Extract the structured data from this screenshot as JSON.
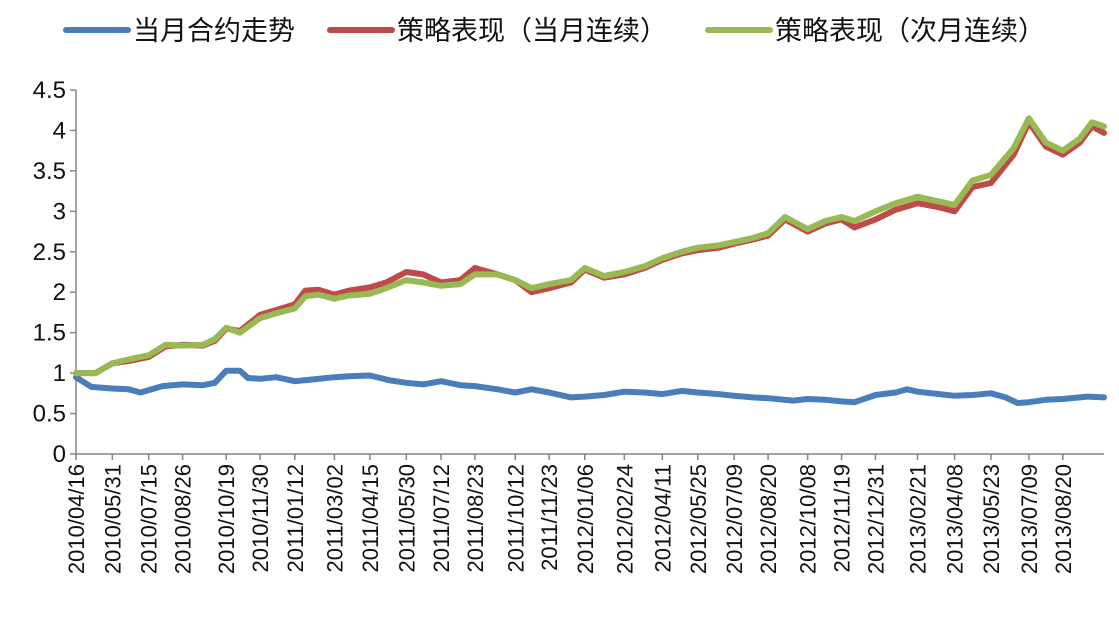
{
  "chart_data": {
    "type": "line",
    "legend_position": "top",
    "grid": false,
    "ylim": [
      0,
      4.5
    ],
    "y_ticks": [
      "0",
      "0.5",
      "1",
      "1.5",
      "2",
      "2.5",
      "3",
      "3.5",
      "4",
      "4.5"
    ],
    "x_ticks": [
      "2010/04/16",
      "2010/05/31",
      "2010/07/15",
      "2010/08/26",
      "2010/10/19",
      "2010/11/30",
      "2011/01/12",
      "2011/03/02",
      "2011/04/15",
      "2011/05/30",
      "2011/07/12",
      "2011/08/23",
      "2011/10/12",
      "2011/11/23",
      "2012/01/06",
      "2012/02/24",
      "2012/04/11",
      "2012/05/25",
      "2012/07/09",
      "2012/08/20",
      "2012/10/08",
      "2012/11/19",
      "2012/12/31",
      "2013/02/21",
      "2013/04/08",
      "2013/05/23",
      "2013/07/09",
      "2013/08/20"
    ],
    "x_range": [
      "2010/04/16",
      "2013/10/10"
    ],
    "series": [
      {
        "name": "当月合约走势",
        "color": "#4a7ebb",
        "points": [
          [
            "2010/04/16",
            0.95
          ],
          [
            "2010/05/05",
            0.83
          ],
          [
            "2010/05/31",
            0.81
          ],
          [
            "2010/06/20",
            0.8
          ],
          [
            "2010/07/05",
            0.76
          ],
          [
            "2010/07/15",
            0.79
          ],
          [
            "2010/08/01",
            0.84
          ],
          [
            "2010/08/26",
            0.86
          ],
          [
            "2010/09/20",
            0.85
          ],
          [
            "2010/10/05",
            0.88
          ],
          [
            "2010/10/19",
            1.03
          ],
          [
            "2010/11/05",
            1.03
          ],
          [
            "2010/11/15",
            0.94
          ],
          [
            "2010/11/30",
            0.93
          ],
          [
            "2010/12/20",
            0.95
          ],
          [
            "2011/01/12",
            0.9
          ],
          [
            "2011/02/01",
            0.92
          ],
          [
            "2011/03/02",
            0.95
          ],
          [
            "2011/03/20",
            0.96
          ],
          [
            "2011/04/15",
            0.97
          ],
          [
            "2011/05/10",
            0.91
          ],
          [
            "2011/05/30",
            0.88
          ],
          [
            "2011/06/20",
            0.86
          ],
          [
            "2011/07/12",
            0.9
          ],
          [
            "2011/08/05",
            0.85
          ],
          [
            "2011/08/23",
            0.84
          ],
          [
            "2011/09/20",
            0.8
          ],
          [
            "2011/10/12",
            0.76
          ],
          [
            "2011/11/01",
            0.8
          ],
          [
            "2011/11/23",
            0.76
          ],
          [
            "2011/12/20",
            0.7
          ],
          [
            "2012/01/06",
            0.71
          ],
          [
            "2012/01/30",
            0.73
          ],
          [
            "2012/02/24",
            0.77
          ],
          [
            "2012/03/20",
            0.76
          ],
          [
            "2012/04/11",
            0.74
          ],
          [
            "2012/05/05",
            0.78
          ],
          [
            "2012/05/25",
            0.76
          ],
          [
            "2012/06/20",
            0.74
          ],
          [
            "2012/07/09",
            0.72
          ],
          [
            "2012/08/01",
            0.7
          ],
          [
            "2012/08/20",
            0.69
          ],
          [
            "2012/09/20",
            0.66
          ],
          [
            "2012/10/08",
            0.68
          ],
          [
            "2012/10/30",
            0.67
          ],
          [
            "2012/11/19",
            0.65
          ],
          [
            "2012/12/05",
            0.64
          ],
          [
            "2012/12/31",
            0.73
          ],
          [
            "2013/01/25",
            0.76
          ],
          [
            "2013/02/08",
            0.8
          ],
          [
            "2013/02/21",
            0.77
          ],
          [
            "2013/03/20",
            0.74
          ],
          [
            "2013/04/08",
            0.72
          ],
          [
            "2013/04/30",
            0.73
          ],
          [
            "2013/05/23",
            0.75
          ],
          [
            "2013/06/10",
            0.7
          ],
          [
            "2013/06/25",
            0.63
          ],
          [
            "2013/07/09",
            0.64
          ],
          [
            "2013/07/30",
            0.67
          ],
          [
            "2013/08/20",
            0.68
          ],
          [
            "2013/09/20",
            0.71
          ],
          [
            "2013/10/10",
            0.7
          ]
        ]
      },
      {
        "name": "策略表现（当月连续）",
        "color": "#be4b48",
        "points": [
          [
            "2010/04/16",
            1.0
          ],
          [
            "2010/05/10",
            1.0
          ],
          [
            "2010/05/31",
            1.12
          ],
          [
            "2010/06/20",
            1.15
          ],
          [
            "2010/07/15",
            1.2
          ],
          [
            "2010/08/05",
            1.33
          ],
          [
            "2010/08/26",
            1.35
          ],
          [
            "2010/09/20",
            1.34
          ],
          [
            "2010/10/05",
            1.4
          ],
          [
            "2010/10/19",
            1.55
          ],
          [
            "2010/11/05",
            1.52
          ],
          [
            "2010/11/30",
            1.72
          ],
          [
            "2010/12/20",
            1.78
          ],
          [
            "2011/01/12",
            1.85
          ],
          [
            "2011/01/25",
            2.02
          ],
          [
            "2011/02/10",
            2.03
          ],
          [
            "2011/03/02",
            1.97
          ],
          [
            "2011/03/20",
            2.02
          ],
          [
            "2011/04/15",
            2.06
          ],
          [
            "2011/05/05",
            2.12
          ],
          [
            "2011/05/30",
            2.25
          ],
          [
            "2011/06/20",
            2.22
          ],
          [
            "2011/07/12",
            2.12
          ],
          [
            "2011/08/05",
            2.15
          ],
          [
            "2011/08/23",
            2.3
          ],
          [
            "2011/09/20",
            2.22
          ],
          [
            "2011/10/12",
            2.15
          ],
          [
            "2011/11/01",
            2.0
          ],
          [
            "2011/11/23",
            2.05
          ],
          [
            "2011/12/20",
            2.12
          ],
          [
            "2012/01/06",
            2.28
          ],
          [
            "2012/01/30",
            2.18
          ],
          [
            "2012/02/24",
            2.22
          ],
          [
            "2012/03/20",
            2.3
          ],
          [
            "2012/04/11",
            2.4
          ],
          [
            "2012/05/05",
            2.48
          ],
          [
            "2012/05/25",
            2.52
          ],
          [
            "2012/06/20",
            2.55
          ],
          [
            "2012/07/09",
            2.6
          ],
          [
            "2012/08/01",
            2.65
          ],
          [
            "2012/08/20",
            2.7
          ],
          [
            "2012/09/10",
            2.9
          ],
          [
            "2012/10/08",
            2.75
          ],
          [
            "2012/10/30",
            2.85
          ],
          [
            "2012/11/19",
            2.9
          ],
          [
            "2012/12/05",
            2.8
          ],
          [
            "2012/12/31",
            2.9
          ],
          [
            "2013/01/25",
            3.02
          ],
          [
            "2013/02/21",
            3.1
          ],
          [
            "2013/03/20",
            3.05
          ],
          [
            "2013/04/08",
            3.0
          ],
          [
            "2013/04/30",
            3.3
          ],
          [
            "2013/05/23",
            3.35
          ],
          [
            "2013/06/20",
            3.7
          ],
          [
            "2013/07/09",
            4.1
          ],
          [
            "2013/07/30",
            3.8
          ],
          [
            "2013/08/20",
            3.7
          ],
          [
            "2013/09/10",
            3.85
          ],
          [
            "2013/09/25",
            4.05
          ],
          [
            "2013/10/10",
            3.97
          ]
        ]
      },
      {
        "name": "策略表现（次月连续）",
        "color": "#98b954",
        "points": [
          [
            "2010/04/16",
            1.0
          ],
          [
            "2010/05/10",
            1.0
          ],
          [
            "2010/05/31",
            1.12
          ],
          [
            "2010/06/20",
            1.17
          ],
          [
            "2010/07/15",
            1.22
          ],
          [
            "2010/08/05",
            1.35
          ],
          [
            "2010/08/26",
            1.34
          ],
          [
            "2010/09/20",
            1.35
          ],
          [
            "2010/10/05",
            1.42
          ],
          [
            "2010/10/19",
            1.56
          ],
          [
            "2010/11/05",
            1.5
          ],
          [
            "2010/11/30",
            1.68
          ],
          [
            "2010/12/20",
            1.74
          ],
          [
            "2011/01/12",
            1.8
          ],
          [
            "2011/01/25",
            1.95
          ],
          [
            "2011/02/10",
            1.97
          ],
          [
            "2011/03/02",
            1.92
          ],
          [
            "2011/03/20",
            1.96
          ],
          [
            "2011/04/15",
            1.98
          ],
          [
            "2011/05/05",
            2.05
          ],
          [
            "2011/05/30",
            2.15
          ],
          [
            "2011/06/20",
            2.12
          ],
          [
            "2011/07/12",
            2.08
          ],
          [
            "2011/08/05",
            2.1
          ],
          [
            "2011/08/23",
            2.22
          ],
          [
            "2011/09/20",
            2.22
          ],
          [
            "2011/10/12",
            2.15
          ],
          [
            "2011/11/01",
            2.05
          ],
          [
            "2011/11/23",
            2.1
          ],
          [
            "2011/12/20",
            2.15
          ],
          [
            "2012/01/06",
            2.3
          ],
          [
            "2012/01/30",
            2.2
          ],
          [
            "2012/02/24",
            2.25
          ],
          [
            "2012/03/20",
            2.32
          ],
          [
            "2012/04/11",
            2.42
          ],
          [
            "2012/05/05",
            2.5
          ],
          [
            "2012/05/25",
            2.55
          ],
          [
            "2012/06/20",
            2.58
          ],
          [
            "2012/07/09",
            2.62
          ],
          [
            "2012/08/01",
            2.67
          ],
          [
            "2012/08/20",
            2.73
          ],
          [
            "2012/09/10",
            2.93
          ],
          [
            "2012/10/08",
            2.78
          ],
          [
            "2012/10/30",
            2.88
          ],
          [
            "2012/11/19",
            2.93
          ],
          [
            "2012/12/05",
            2.88
          ],
          [
            "2012/12/31",
            3.0
          ],
          [
            "2013/01/25",
            3.1
          ],
          [
            "2013/02/21",
            3.18
          ],
          [
            "2013/03/20",
            3.12
          ],
          [
            "2013/04/08",
            3.08
          ],
          [
            "2013/04/30",
            3.38
          ],
          [
            "2013/05/23",
            3.45
          ],
          [
            "2013/06/20",
            3.78
          ],
          [
            "2013/07/09",
            4.15
          ],
          [
            "2013/07/30",
            3.85
          ],
          [
            "2013/08/20",
            3.75
          ],
          [
            "2013/09/10",
            3.9
          ],
          [
            "2013/09/25",
            4.1
          ],
          [
            "2013/10/10",
            4.05
          ]
        ]
      }
    ]
  }
}
